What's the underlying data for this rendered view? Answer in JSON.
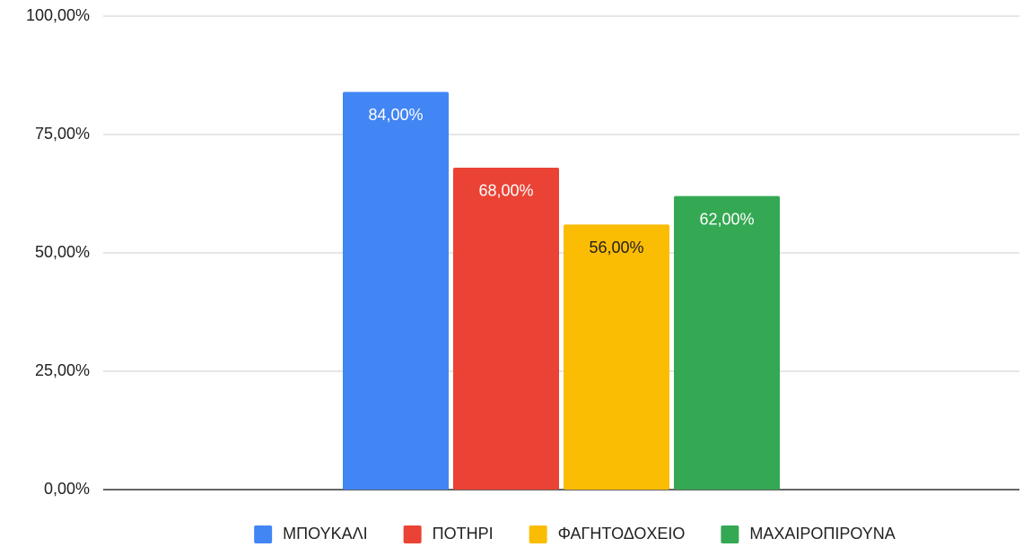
{
  "chart_data": {
    "type": "bar",
    "categories": [
      null
    ],
    "series": [
      {
        "name": "ΜΠΟΥΚΑΛΙ",
        "color": "#4285f4",
        "values": [
          84
        ],
        "value_labels": [
          "84,00%"
        ]
      },
      {
        "name": "ΠΟΤΗΡΙ",
        "color": "#ea4335",
        "values": [
          68
        ],
        "value_labels": [
          "68,00%"
        ]
      },
      {
        "name": "ΦΑΓΗΤΟΔΟΧΕΙΟ",
        "color": "#fbbc04",
        "values": [
          56
        ],
        "value_labels": [
          "56,00%"
        ]
      },
      {
        "name": "ΜΑΧΑΙΡΟΠΙΡΟΥΝΑ",
        "color": "#34a853",
        "values": [
          62
        ],
        "value_labels": [
          "62,00%"
        ]
      }
    ],
    "ylim": [
      0,
      100
    ],
    "yticks": [
      {
        "value": 0,
        "label": "0,00%"
      },
      {
        "value": 25,
        "label": "25,00%"
      },
      {
        "value": 50,
        "label": "50,00%"
      },
      {
        "value": 75,
        "label": "75,00%"
      },
      {
        "value": 100,
        "label": "100,00%"
      }
    ],
    "grid": true,
    "legend": "bottom"
  }
}
